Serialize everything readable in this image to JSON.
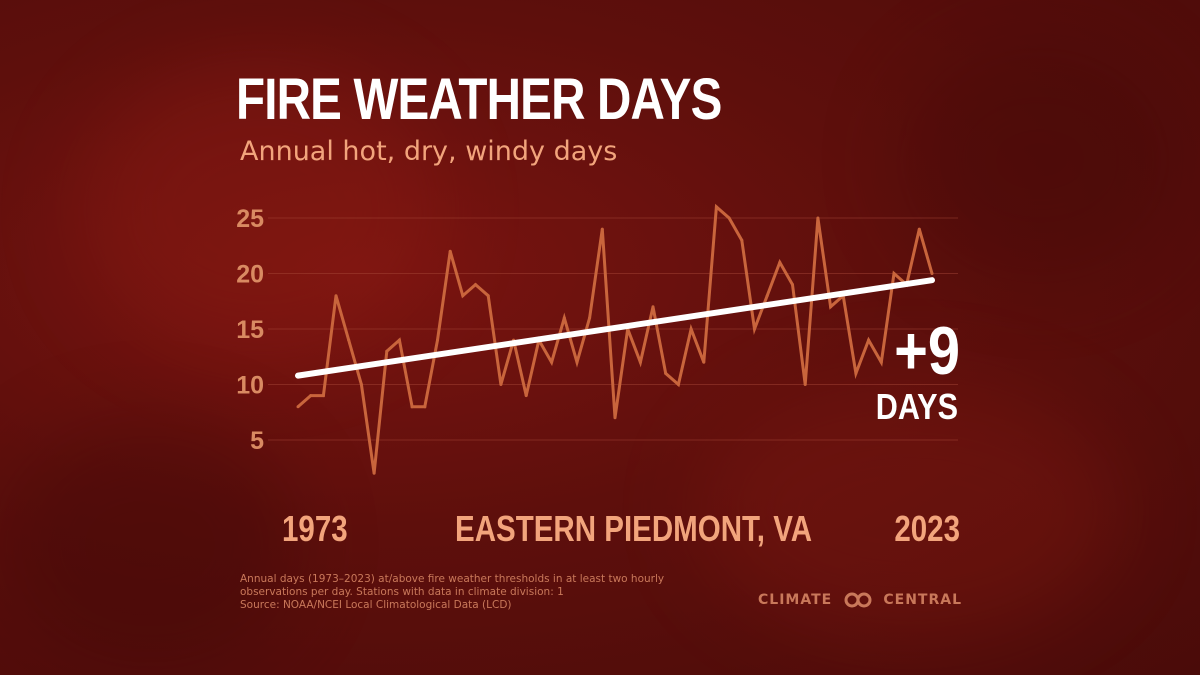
{
  "title": "FIRE WEATHER DAYS",
  "subtitle": "Annual hot, dry, windy days",
  "start_year": "1973",
  "end_year": "2023",
  "region": "EASTERN PIEDMONT, VA",
  "trend_delta": "+9",
  "trend_unit": "DAYS",
  "footnote": [
    "Annual days (1973–2023) at/above fire weather thresholds in at least two hourly",
    "observations per day. Stations with data in climate division: 1",
    "Source: NOAA/NCEI Local Climatological Data (LCD)"
  ],
  "logo": {
    "left": "CLIMATE",
    "right": "CENTRAL"
  },
  "colors": {
    "line": "#c9653c",
    "trend": "#ffffff",
    "text_accent": "#f2a47c",
    "background": "#5e0f0c"
  },
  "chart_data": {
    "type": "line",
    "x": [
      1973,
      1974,
      1975,
      1976,
      1977,
      1978,
      1979,
      1980,
      1981,
      1982,
      1983,
      1984,
      1985,
      1986,
      1987,
      1988,
      1989,
      1990,
      1991,
      1992,
      1993,
      1994,
      1995,
      1996,
      1997,
      1998,
      1999,
      2000,
      2001,
      2002,
      2003,
      2004,
      2005,
      2006,
      2007,
      2008,
      2009,
      2010,
      2011,
      2012,
      2013,
      2014,
      2015,
      2016,
      2017,
      2018,
      2019,
      2020,
      2021,
      2022,
      2023
    ],
    "series": [
      {
        "values": [
          8,
          9,
          9,
          18,
          14,
          10,
          2,
          13,
          14,
          8,
          8,
          14,
          22,
          18,
          19,
          18,
          10,
          14,
          9,
          14,
          12,
          16,
          12,
          16,
          24,
          7,
          15,
          12,
          17,
          11,
          10,
          15,
          12,
          26,
          25,
          23,
          15,
          18,
          21,
          19,
          10,
          25,
          17,
          18,
          11,
          14,
          12,
          20,
          19,
          24,
          20
        ]
      }
    ],
    "trend": {
      "start": [
        1973,
        10.8
      ],
      "end": [
        2023,
        19.4
      ]
    },
    "yticks": [
      "5",
      "10",
      "15",
      "20",
      "25"
    ],
    "ylim": [
      0,
      27
    ],
    "grid": true
  }
}
